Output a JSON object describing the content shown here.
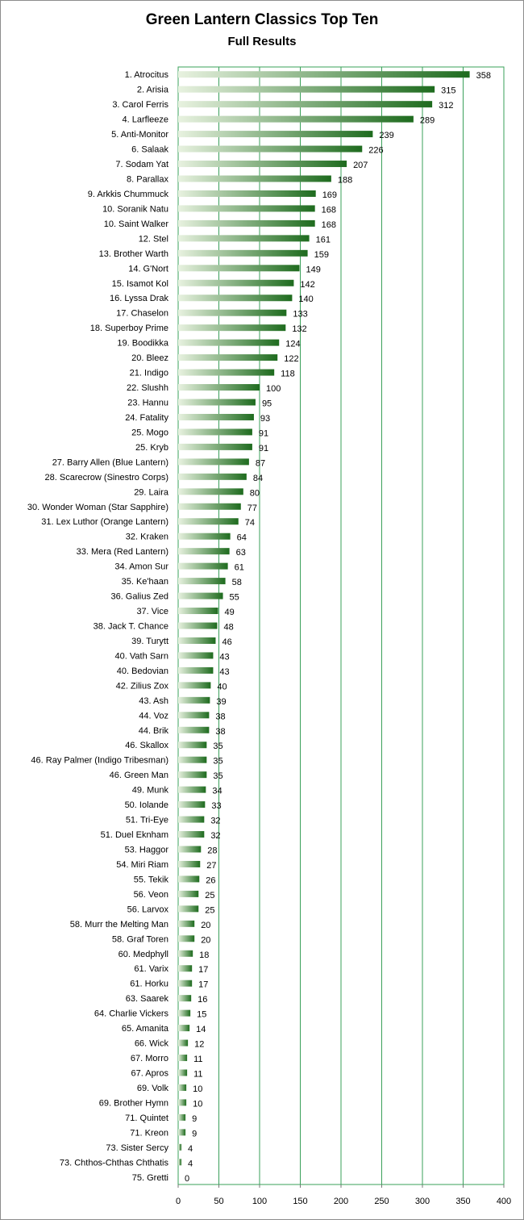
{
  "chart_data": {
    "type": "bar",
    "orientation": "horizontal",
    "title": "Green Lantern Classics Top Ten",
    "subtitle": "Full Results",
    "xlim": [
      0,
      400
    ],
    "x_ticks": [
      0,
      50,
      100,
      150,
      200,
      250,
      300,
      350,
      400
    ],
    "grid": true,
    "legend": "none",
    "bar_color": "#1e6b1e",
    "bar_color_light": "#e8f2e0",
    "grid_color": "#3aa05a",
    "categories": [
      "1. Atrocitus",
      "2. Arisia",
      "3. Carol Ferris",
      "4. Larfleeze",
      "5. Anti-Monitor",
      "6. Salaak",
      "7. Sodam Yat",
      "8. Parallax",
      "9. Arkkis Chummuck",
      "10. Soranik Natu",
      "10. Saint Walker",
      "12. Stel",
      "13. Brother Warth",
      "14. G'Nort",
      "15. Isamot Kol",
      "16. Lyssa Drak",
      "17. Chaselon",
      "18. Superboy Prime",
      "19. Boodikka",
      "20. Bleez",
      "21. Indigo",
      "22. Slushh",
      "23. Hannu",
      "24. Fatality",
      "25. Mogo",
      "25. Kryb",
      "27. Barry Allen (Blue Lantern)",
      "28. Scarecrow (Sinestro Corps)",
      "29. Laira",
      "30. Wonder Woman (Star Sapphire)",
      "31. Lex Luthor (Orange Lantern)",
      "32. Kraken",
      "33. Mera (Red Lantern)",
      "34. Amon Sur",
      "35. Ke'haan",
      "36. Galius Zed",
      "37. Vice",
      "38. Jack T. Chance",
      "39. Turytt",
      "40. Vath Sarn",
      "40. Bedovian",
      "42. Zilius Zox",
      "43. Ash",
      "44. Voz",
      "44. Brik",
      "46. Skallox",
      "46. Ray Palmer (Indigo Tribesman)",
      "46. Green Man",
      "49. Munk",
      "50. Iolande",
      "51. Tri-Eye",
      "51. Duel Eknham",
      "53. Haggor",
      "54. Miri Riam",
      "55. Tekik",
      "56. Veon",
      "56. Larvox",
      "58. Murr the Melting Man",
      "58. Graf Toren",
      "60. Medphyll",
      "61. Varix",
      "61. Horku",
      "63. Saarek",
      "64. Charlie Vickers",
      "65. Amanita",
      "66. Wick",
      "67. Morro",
      "67. Apros",
      "69. Volk",
      "69. Brother Hymn",
      "71. Quintet",
      "71. Kreon",
      "73. Sister Sercy",
      "73. Chthos-Chthas Chthatis",
      "75. Gretti"
    ],
    "values": [
      358,
      315,
      312,
      289,
      239,
      226,
      207,
      188,
      169,
      168,
      168,
      161,
      159,
      149,
      142,
      140,
      133,
      132,
      124,
      122,
      118,
      100,
      95,
      93,
      91,
      91,
      87,
      84,
      80,
      77,
      74,
      64,
      63,
      61,
      58,
      55,
      49,
      48,
      46,
      43,
      43,
      40,
      39,
      38,
      38,
      35,
      35,
      35,
      34,
      33,
      32,
      32,
      28,
      27,
      26,
      25,
      25,
      20,
      20,
      18,
      17,
      17,
      16,
      15,
      14,
      12,
      11,
      11,
      10,
      10,
      9,
      9,
      4,
      4,
      0
    ]
  }
}
